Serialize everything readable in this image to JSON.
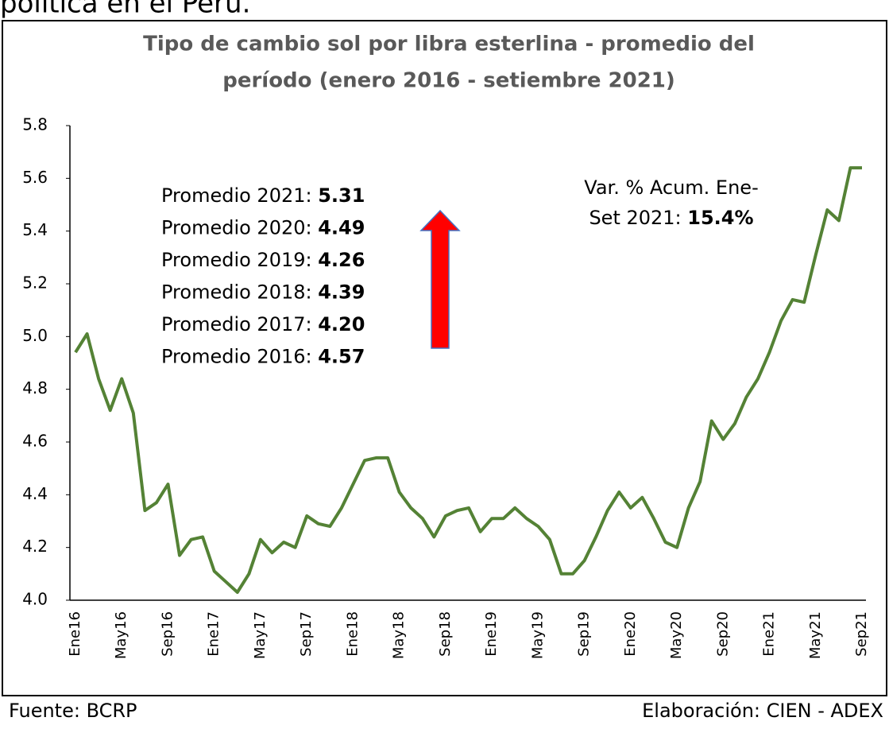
{
  "heading": "política en el Perú.",
  "chart_data": {
    "type": "line",
    "title": [
      "Tipo de cambio sol por libra esterlina - promedio del",
      "período (enero 2016 - setiembre 2021)"
    ],
    "categories": [
      "Ene16",
      null,
      null,
      null,
      "May16",
      null,
      null,
      null,
      "Sep16",
      null,
      null,
      null,
      "Ene17",
      null,
      null,
      null,
      "May17",
      null,
      null,
      null,
      "Sep17",
      null,
      null,
      null,
      "Ene18",
      null,
      null,
      null,
      "May18",
      null,
      null,
      null,
      "Sep18",
      null,
      null,
      null,
      "Ene19",
      null,
      null,
      null,
      "May19",
      null,
      null,
      null,
      "Sep19",
      null,
      null,
      null,
      "Ene20",
      null,
      null,
      null,
      "May20",
      null,
      null,
      null,
      "Sep20",
      null,
      null,
      null,
      "Ene21",
      null,
      null,
      null,
      "May21",
      null,
      null,
      null,
      "Sep21"
    ],
    "series": [
      {
        "color": "#548235",
        "values": [
          4.94,
          5.01,
          4.84,
          4.72,
          4.84,
          4.71,
          4.34,
          4.37,
          4.44,
          4.17,
          4.23,
          4.24,
          4.11,
          4.07,
          4.03,
          4.1,
          4.23,
          4.18,
          4.22,
          4.2,
          4.32,
          4.29,
          4.28,
          4.35,
          4.44,
          4.53,
          4.54,
          4.54,
          4.41,
          4.35,
          4.31,
          4.24,
          4.32,
          4.34,
          4.35,
          4.26,
          4.31,
          4.31,
          4.35,
          4.31,
          4.28,
          4.23,
          4.1,
          4.1,
          4.15,
          4.24,
          4.34,
          4.41,
          4.35,
          4.39,
          4.31,
          4.22,
          4.2,
          4.35,
          4.45,
          4.68,
          4.61,
          4.67,
          4.77,
          4.84,
          4.94,
          5.06,
          5.14,
          5.13,
          5.31,
          5.48,
          5.44,
          5.64,
          5.64
        ]
      }
    ],
    "ylim": [
      4.0,
      5.8
    ],
    "yticks": [
      {
        "value": 4.0,
        "label": "4.0"
      },
      4.2,
      4.4,
      4.6,
      4.8,
      {
        "value": 5.0,
        "label": "5.0"
      },
      5.2,
      5.4,
      5.6,
      5.8
    ],
    "annotations": {
      "averages": [
        {
          "label": "Promedio 2021: ",
          "value": "5.31"
        },
        {
          "label": "Promedio 2020: ",
          "value": "4.49"
        },
        {
          "label": "Promedio 2019: ",
          "value": "4.26"
        },
        {
          "label": "Promedio 2018: ",
          "value": "4.39"
        },
        {
          "label": "Promedio 2017: ",
          "value": "4.20"
        },
        {
          "label": "Promedio 2016: ",
          "value": "4.57"
        }
      ],
      "variation": {
        "line1": "Var. % Acum. Ene-",
        "line2": "Set 2021: ",
        "value": "15.4%"
      }
    }
  },
  "footer": {
    "source": "Fuente: BCRP",
    "credit": "Elaboración: CIEN - ADEX"
  }
}
